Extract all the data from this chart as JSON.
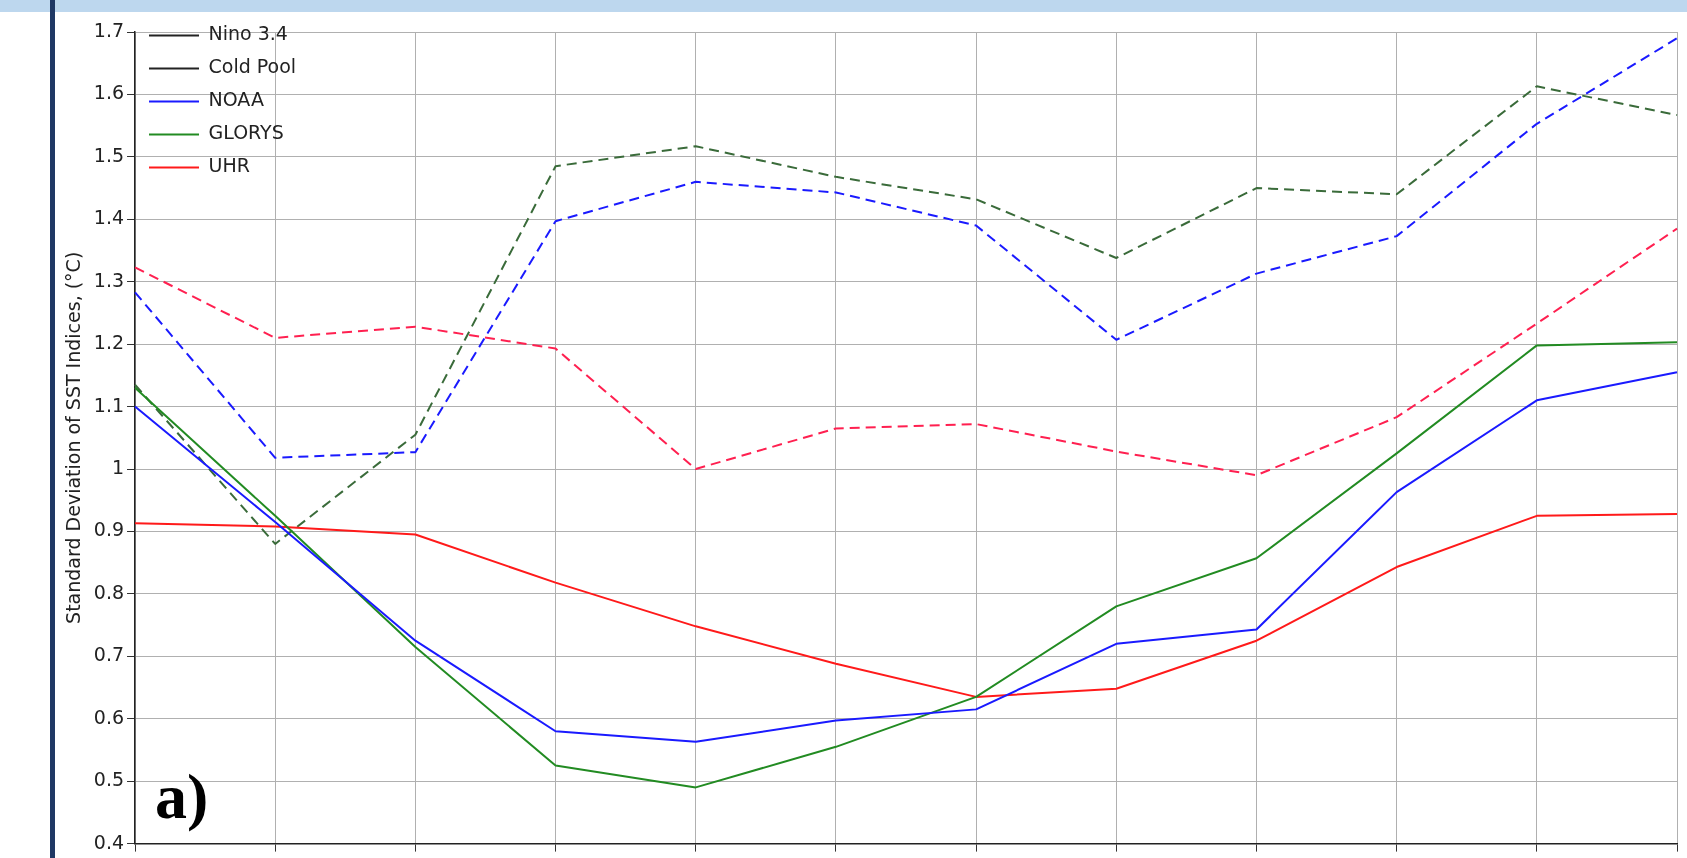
{
  "chart_data": {
    "type": "line",
    "ylabel": "Standard Deviation of SST Indices, (°C)",
    "categories": [
      null,
      null,
      null,
      null,
      null,
      null,
      null,
      null,
      null,
      null,
      null,
      null
    ],
    "ylim": [
      0.4,
      1.7
    ],
    "yticks": [
      0.4,
      0.5,
      0.6,
      0.7,
      0.8,
      0.9,
      {
        "value": 1,
        "label": "1"
      },
      1.1,
      1.2,
      1.3,
      1.4,
      1.5,
      1.6,
      1.7
    ],
    "tick_labels": "y",
    "grid": true,
    "legend": "top left",
    "marker": "none",
    "annotations": [
      "a)"
    ],
    "series": [
      {
        "name": "Nino 3.4",
        "color": "#222222",
        "line_style": "solid",
        "values": [
          null,
          null,
          null,
          null,
          null,
          null,
          null,
          null,
          null,
          null,
          null,
          null
        ]
      },
      {
        "name": "Cold Pool",
        "color": "#222222",
        "line_style": "dashed",
        "values": [
          null,
          null,
          null,
          null,
          null,
          null,
          null,
          null,
          null,
          null,
          null,
          null
        ]
      },
      {
        "name": "NOAA",
        "color": "#1a1aff",
        "line_style": "solid",
        "values": [
          1.1,
          0.915,
          0.725,
          0.58,
          0.563,
          0.597,
          0.615,
          0.72,
          0.743,
          0.963,
          1.11,
          1.155
        ]
      },
      {
        "name": "GLORYS",
        "color": "#228b22",
        "line_style": "solid",
        "values": [
          1.13,
          0.925,
          0.715,
          0.525,
          0.49,
          0.555,
          0.635,
          0.78,
          0.857,
          1.025,
          1.198,
          1.203
        ]
      },
      {
        "name": "UHR",
        "color": "#ff1a1a",
        "line_style": "solid",
        "values": [
          0.913,
          0.908,
          0.895,
          0.818,
          0.748,
          0.688,
          0.635,
          0.648,
          0.725,
          0.843,
          0.925,
          0.928
        ]
      },
      {
        "color": "#1a1aff",
        "line_style": "dashed",
        "values": [
          1.283,
          1.018,
          1.027,
          1.397,
          1.46,
          1.443,
          1.39,
          1.207,
          1.313,
          1.373,
          1.553,
          1.69
        ]
      },
      {
        "color": "#3a6b3a",
        "line_style": "dashed",
        "values": [
          1.135,
          0.88,
          1.055,
          1.485,
          1.517,
          1.468,
          1.432,
          1.338,
          1.45,
          1.44,
          1.613,
          1.567
        ]
      },
      {
        "color": "#ff2050",
        "line_style": "dashed",
        "values": [
          1.323,
          1.21,
          1.228,
          1.193,
          1.0,
          1.065,
          1.072,
          1.028,
          0.99,
          1.083,
          1.233,
          1.385
        ]
      }
    ]
  }
}
